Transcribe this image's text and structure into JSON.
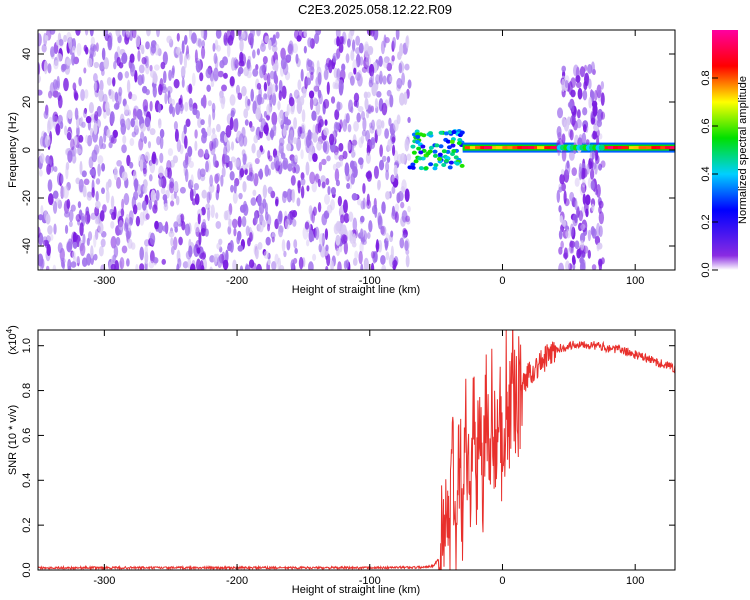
{
  "title": "C2E3.2025.058.12.22.R09",
  "colors": {
    "spectrogram_noise": "#8a2be2",
    "snr_line": "#e8302c",
    "frame": "#000000"
  },
  "colorbar": {
    "label": "Normalized spectral amplitude",
    "ticks": [
      "0.0",
      "0.2",
      "0.4",
      "0.6",
      "0.8"
    ],
    "colormap": "rainbow (violet → blue → cyan → green → yellow → red → magenta)"
  },
  "chart_data": [
    {
      "type": "heatmap",
      "title": "C2E3.2025.058.12.22.R09",
      "xlabel": "Height of straight line (km)",
      "ylabel": "Frequency (Hz)",
      "xlim": [
        -350,
        130
      ],
      "ylim": [
        -50,
        50
      ],
      "xticks": [
        "-300",
        "-200",
        "-100",
        "0",
        "100"
      ],
      "yticks": [
        "-40",
        "-20",
        "0",
        "20",
        "40"
      ],
      "grid": false,
      "regions": [
        {
          "kind": "broadband-noise",
          "x": [
            -350,
            -70
          ],
          "y": [
            -50,
            50
          ],
          "amplitude": 0.15
        },
        {
          "kind": "scattered-tone",
          "x": [
            -70,
            -30
          ],
          "y": [
            -8,
            8
          ],
          "amplitude": 0.5
        },
        {
          "kind": "narrowband-tone",
          "x": [
            -30,
            130
          ],
          "y": [
            0,
            2
          ],
          "amplitude": 0.95
        },
        {
          "kind": "broadband-burst",
          "x": [
            42,
            76
          ],
          "y": [
            -50,
            35
          ],
          "amplitude": 0.2
        }
      ]
    },
    {
      "type": "line",
      "xlabel": "Height of straight line (km)",
      "ylabel": "SNR (10 * v/v)",
      "yexp": "(x10",
      "yexp_sup": "4",
      "yexp_close": ")",
      "xlim": [
        -350,
        130
      ],
      "ylim": [
        0,
        1.07
      ],
      "xticks": [
        "-300",
        "-200",
        "-100",
        "0",
        "100"
      ],
      "yticks": [
        "0.0",
        "0.2",
        "0.4",
        "0.6",
        "0.8",
        "1.0"
      ],
      "grid": false,
      "series": [
        {
          "x": [
            -350,
            -300,
            -250,
            -200,
            -150,
            -100,
            -60,
            -52,
            -48,
            -45,
            -42,
            -40,
            -38,
            -35,
            -32,
            -30,
            -28,
            -25,
            -22,
            -20,
            -17,
            -15,
            -12,
            -10,
            -8,
            -5,
            -3,
            0,
            3,
            5,
            8,
            10,
            15,
            20,
            25,
            30,
            40,
            50,
            60,
            70,
            80,
            90,
            100,
            110,
            120,
            130
          ],
          "y": [
            0.01,
            0.01,
            0.01,
            0.01,
            0.01,
            0.01,
            0.012,
            0.02,
            0.05,
            0.15,
            0.35,
            0.05,
            0.55,
            0.1,
            0.65,
            0.2,
            0.75,
            0.3,
            0.78,
            0.25,
            0.82,
            0.4,
            0.85,
            0.35,
            0.8,
            0.5,
            0.82,
            0.45,
            0.85,
            0.6,
            0.88,
            0.75,
            0.82,
            0.88,
            0.9,
            0.93,
            0.98,
            1.0,
            1.01,
            1.0,
            0.99,
            0.98,
            0.96,
            0.94,
            0.92,
            0.9
          ]
        }
      ]
    }
  ]
}
